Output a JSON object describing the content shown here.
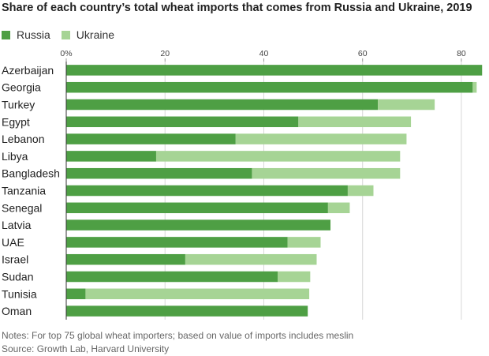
{
  "chart_data": {
    "type": "bar",
    "orientation": "horizontal",
    "stacked": true,
    "title": "Share of each country’s total wheat imports that comes from Russia and Ukraine, 2019",
    "xlim": [
      0,
      84
    ],
    "xticks": [
      0,
      20,
      40,
      60,
      80
    ],
    "xtick_labels": [
      "0%",
      "20",
      "40",
      "60",
      "80"
    ],
    "grid": true,
    "legend_position": "top-left",
    "categories": [
      "Azerbaijan",
      "Georgia",
      "Turkey",
      "Egypt",
      "Lebanon",
      "Libya",
      "Bangladesh",
      "Tanzania",
      "Senegal",
      "Latvia",
      "UAE",
      "Israel",
      "Sudan",
      "Tunisia",
      "Oman"
    ],
    "series": [
      {
        "name": "Russia",
        "color": "#4e9f44",
        "values": [
          84.2,
          82.3,
          63.1,
          47.0,
          34.3,
          18.2,
          37.6,
          57.0,
          53.0,
          53.5,
          44.8,
          24.1,
          42.8,
          3.9,
          48.9
        ]
      },
      {
        "name": "Ukraine",
        "color": "#a6d495",
        "values": [
          0.0,
          0.8,
          11.5,
          22.8,
          34.6,
          49.4,
          30.0,
          5.2,
          4.4,
          0.0,
          6.7,
          26.6,
          6.6,
          45.3,
          0.0
        ]
      }
    ]
  },
  "notes": [
    "Notes: For top 75 global wheat importers; based on value of imports includes meslin",
    "Source: Growth Lab, Harvard University"
  ]
}
